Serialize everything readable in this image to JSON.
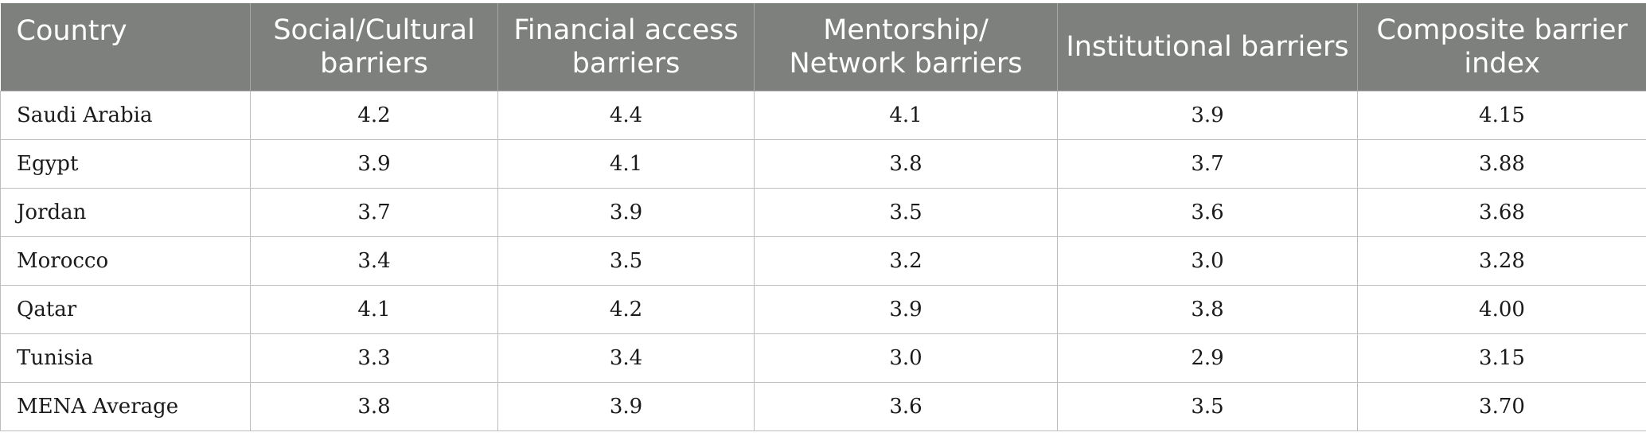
{
  "chart_data": {
    "type": "table",
    "columns": [
      "Country",
      "Social/Cultural barriers",
      "Financial access barriers",
      "Mentorship/ Network barriers",
      "Institutional barriers",
      "Composite barrier index"
    ],
    "rows": [
      [
        "Saudi Arabia",
        "4.2",
        "4.4",
        "4.1",
        "3.9",
        "4.15"
      ],
      [
        "Egypt",
        "3.9",
        "4.1",
        "3.8",
        "3.7",
        "3.88"
      ],
      [
        "Jordan",
        "3.7",
        "3.9",
        "3.5",
        "3.6",
        "3.68"
      ],
      [
        "Morocco",
        "3.4",
        "3.5",
        "3.2",
        "3.0",
        "3.28"
      ],
      [
        "Qatar",
        "4.1",
        "4.2",
        "3.9",
        "3.8",
        "4.00"
      ],
      [
        "Tunisia",
        "3.3",
        "3.4",
        "3.0",
        "2.9",
        "3.15"
      ],
      [
        "MENA Average",
        "3.8",
        "3.9",
        "3.6",
        "3.5",
        "3.70"
      ]
    ]
  },
  "colors": {
    "header_background": "#7e807d",
    "header_text": "#ffffff",
    "cell_text": "#1a1a1a",
    "grid": "#bdbdbd"
  }
}
